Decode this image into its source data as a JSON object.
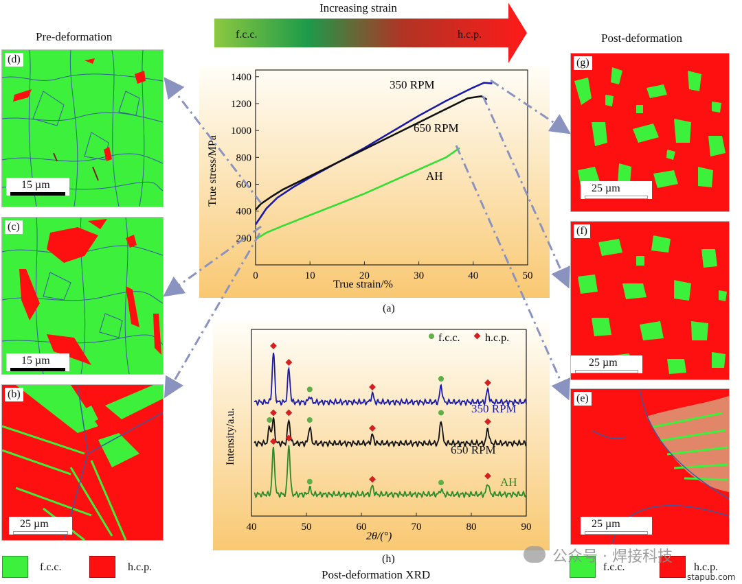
{
  "header": {
    "strain_arrow_label": "Increasing strain",
    "phase_left": "f.c.c.",
    "phase_right": "h.c.p.",
    "pre_title": "Pre-deformation",
    "post_title": "Post-deformation"
  },
  "panels": {
    "d": {
      "label": "(d)",
      "scale": "15 µm"
    },
    "c": {
      "label": "(c)",
      "scale": "15 µm"
    },
    "b": {
      "label": "(b)",
      "scale": "25 µm"
    },
    "g": {
      "label": "(g)",
      "scale": "25 µm"
    },
    "f": {
      "label": "(f)",
      "scale": "25 µm"
    },
    "e": {
      "label": "(e)",
      "scale": "25 µm"
    }
  },
  "legend": {
    "fcc": "f.c.c.",
    "hcp": "h.c.p."
  },
  "colors": {
    "fcc": "#3cf03c",
    "hcp": "#ff1010",
    "grain_boundary": "#3a5aa0",
    "leader": "#8a93c0",
    "blue_curve": "#1a1aa8",
    "green_curve": "#33dd33",
    "diamond": "#d42020",
    "dot": "#5fae48"
  },
  "captions": {
    "a": "(a)",
    "h": "(h)",
    "xrd_title": "Post-deformation XRD"
  },
  "watermark": {
    "main": "公众号 · 焊接科技",
    "site": "stapub.com"
  },
  "chart_data": [
    {
      "type": "line",
      "id": "a",
      "xlabel": "True strain/%",
      "ylabel": "True stress/MPa",
      "xlim": [
        0,
        50
      ],
      "ylim": [
        0,
        1450
      ],
      "xticks": [
        0,
        10,
        20,
        30,
        40,
        50
      ],
      "yticks": [
        200,
        400,
        600,
        800,
        1000,
        1200,
        1400
      ],
      "series": [
        {
          "name": "350 RPM",
          "x": [
            0,
            1,
            2,
            4,
            7,
            10,
            15,
            20,
            25,
            30,
            35,
            40,
            42,
            43.5
          ],
          "y": [
            300,
            360,
            420,
            500,
            580,
            650,
            760,
            870,
            990,
            1110,
            1220,
            1320,
            1355,
            1350
          ]
        },
        {
          "name": "650 RPM",
          "x": [
            0,
            1,
            3,
            5,
            8,
            10,
            15,
            20,
            25,
            30,
            35,
            39,
            41.5,
            42.5
          ],
          "y": [
            410,
            455,
            510,
            560,
            620,
            660,
            760,
            860,
            960,
            1060,
            1160,
            1240,
            1255,
            1230
          ]
        },
        {
          "name": "AH",
          "x": [
            0,
            2,
            5,
            10,
            15,
            20,
            25,
            30,
            35,
            37.5
          ],
          "y": [
            190,
            240,
            290,
            370,
            450,
            530,
            620,
            710,
            800,
            870
          ]
        }
      ]
    },
    {
      "type": "line",
      "id": "h",
      "xlabel": "2θ/(°)",
      "ylabel": "Intensity/a.u.",
      "xlim": [
        40,
        90
      ],
      "xticks": [
        40,
        50,
        60,
        70,
        80,
        90
      ],
      "legend": [
        "f.c.c.",
        "h.c.p."
      ],
      "series": [
        {
          "name": "350 RPM",
          "baseline": 3.0,
          "peaks": [
            {
              "x": 44,
              "h": 1.5,
              "phase": "h.c.p."
            },
            {
              "x": 46.8,
              "h": 1.0,
              "phase": "h.c.p."
            },
            {
              "x": 50.6,
              "h": 0.18,
              "phase": "f.c.c."
            },
            {
              "x": 62,
              "h": 0.25,
              "phase": "h.c.p."
            },
            {
              "x": 74.5,
              "h": 0.5,
              "phase": "f.c.c."
            },
            {
              "x": 83,
              "h": 0.38,
              "phase": "h.c.p."
            }
          ]
        },
        {
          "name": "650 RPM",
          "baseline": 1.75,
          "peaks": [
            {
              "x": 43.3,
              "h": 0.5,
              "phase": "f.c.c."
            },
            {
              "x": 44,
              "h": 0.72,
              "phase": "h.c.p."
            },
            {
              "x": 46.8,
              "h": 0.72,
              "phase": "h.c.p."
            },
            {
              "x": 50.6,
              "h": 0.5,
              "phase": "f.c.c."
            },
            {
              "x": 62,
              "h": 0.25,
              "phase": "h.c.p."
            },
            {
              "x": 74.5,
              "h": 0.72,
              "phase": "f.c.c."
            },
            {
              "x": 83,
              "h": 0.45,
              "phase": "h.c.p."
            }
          ]
        },
        {
          "name": "AH",
          "baseline": 0.2,
          "peaks": [
            {
              "x": 44,
              "h": 1.4,
              "phase": "h.c.p."
            },
            {
              "x": 46.8,
              "h": 1.5,
              "phase": "h.c.p."
            },
            {
              "x": 50.6,
              "h": 0.18,
              "phase": "f.c.c."
            },
            {
              "x": 62,
              "h": 0.25,
              "phase": "h.c.p."
            },
            {
              "x": 74.5,
              "h": 0.15,
              "phase": "f.c.c."
            },
            {
              "x": 83,
              "h": 0.35,
              "phase": "h.c.p."
            }
          ]
        }
      ]
    }
  ]
}
